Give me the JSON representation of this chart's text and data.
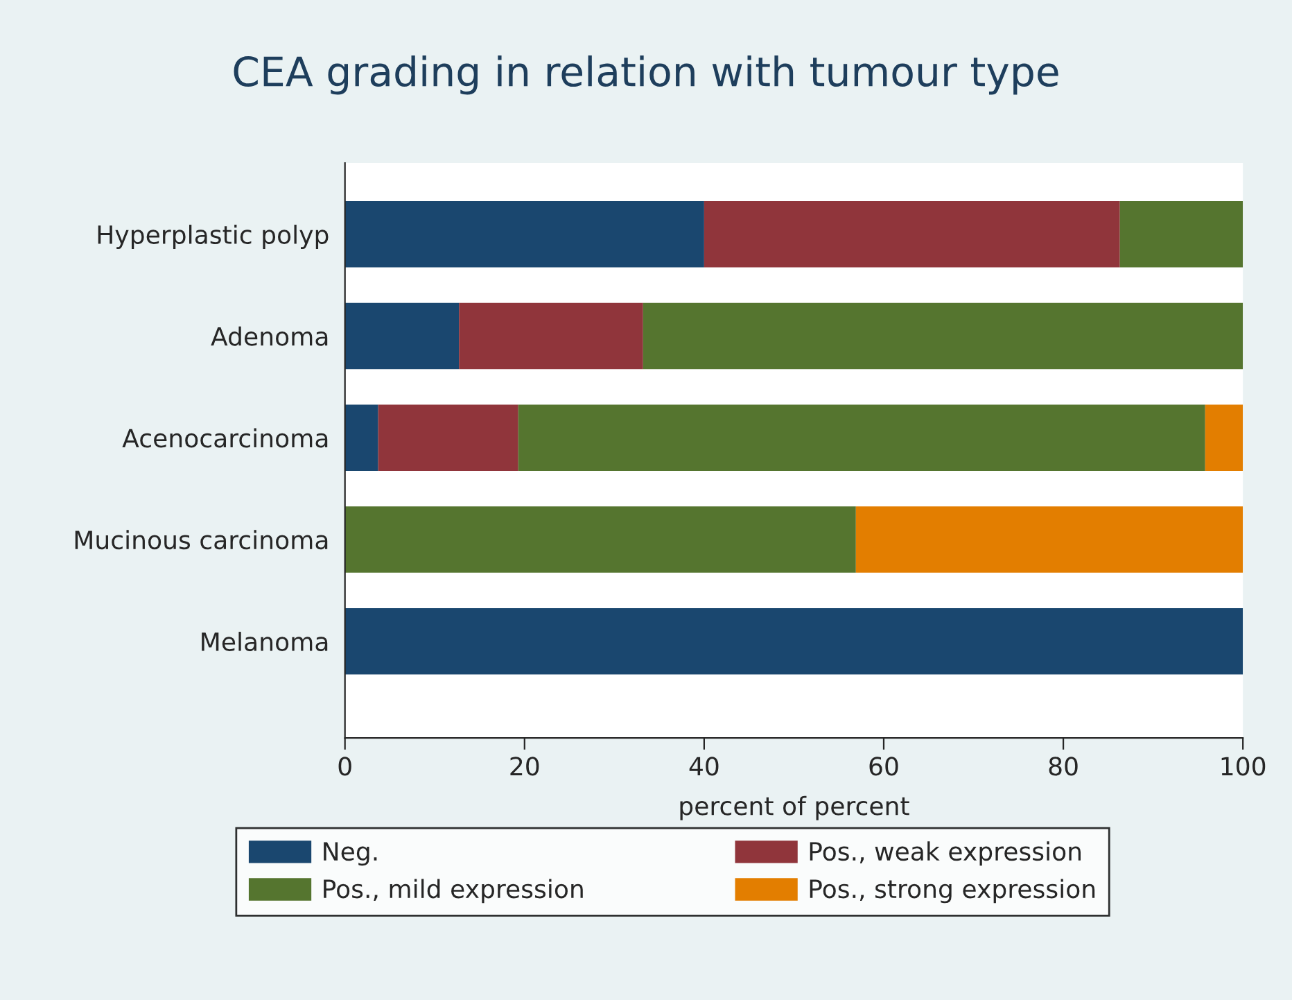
{
  "chart_data": {
    "type": "bar",
    "orientation": "horizontal",
    "stacked": true,
    "title": "CEA grading in relation with tumour type",
    "xlabel": "percent of percent",
    "categories": [
      "Hyperplastic polyp",
      "Adenoma",
      "Acenocarcinoma",
      "Mucinous carcinoma",
      "Melanoma"
    ],
    "series": [
      {
        "name": "Neg.",
        "color": "#1a476f",
        "values": [
          40,
          12.7,
          3.7,
          null,
          100
        ]
      },
      {
        "name": "Pos., weak expression",
        "color": "#90353b",
        "values": [
          46.3,
          20.5,
          15.6,
          null,
          null
        ]
      },
      {
        "name": "Pos., mild expression",
        "color": "#55752f",
        "values": [
          13.7,
          66.8,
          76.5,
          56.9,
          null
        ]
      },
      {
        "name": "Pos., strong expression",
        "color": "#e37e00",
        "values": [
          null,
          null,
          4.2,
          43.1,
          null
        ]
      }
    ],
    "xlim": [
      0,
      100
    ],
    "xticks": [
      0,
      20,
      40,
      60,
      80,
      100
    ],
    "grid": false,
    "legend": "bottom"
  }
}
